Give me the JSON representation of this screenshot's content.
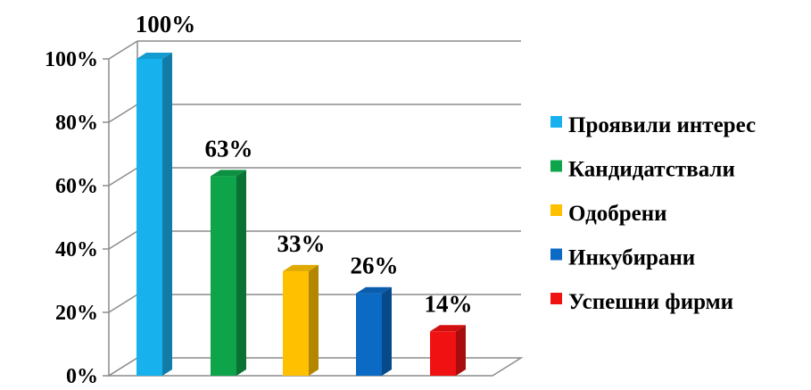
{
  "chart_data": {
    "type": "bar",
    "categories": [
      "Проявили интерес",
      "Кандидатствали",
      "Одобрени",
      "Инкубирани",
      "Успешни фирми"
    ],
    "values": [
      100,
      63,
      33,
      26,
      14
    ],
    "data_labels": [
      "100%",
      "63%",
      "33%",
      "26%",
      "14%"
    ],
    "colors": [
      "#17b1ee",
      "#0ea44a",
      "#ffc000",
      "#0a6ac4",
      "#f01212"
    ],
    "yticks": [
      "0%",
      "20%",
      "40%",
      "60%",
      "80%",
      "100%"
    ],
    "ylim": [
      0,
      100
    ],
    "grid": true,
    "legend": "right",
    "style": "3d"
  }
}
